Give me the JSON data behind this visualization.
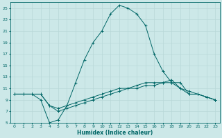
{
  "xlabel": "Humidex (Indice chaleur)",
  "bg_color": "#cce8e8",
  "grid_color": "#b8d8d8",
  "line_color": "#006666",
  "xlim": [
    -0.5,
    23.5
  ],
  "ylim": [
    5,
    26
  ],
  "xticks": [
    0,
    1,
    2,
    3,
    4,
    5,
    6,
    7,
    8,
    9,
    10,
    11,
    12,
    13,
    14,
    15,
    16,
    17,
    18,
    19,
    20,
    21,
    22,
    23
  ],
  "yticks": [
    5,
    7,
    9,
    11,
    13,
    15,
    17,
    19,
    21,
    23,
    25
  ],
  "line1_x": [
    0,
    1,
    2,
    3,
    4,
    5,
    6,
    7,
    8,
    9,
    10,
    11,
    12,
    13,
    14,
    15,
    16,
    17,
    18,
    19,
    20,
    21,
    22,
    23
  ],
  "line1_y": [
    10,
    10,
    10,
    10,
    8,
    7,
    7.5,
    8,
    8.5,
    9,
    9.5,
    10,
    10.5,
    11,
    11,
    11.5,
    11.5,
    12,
    12,
    11,
    10.5,
    10,
    9.5,
    9
  ],
  "line2_x": [
    0,
    1,
    2,
    3,
    4,
    5,
    6,
    7,
    8,
    9,
    10,
    11,
    12,
    13,
    14,
    15,
    16,
    17,
    18,
    19,
    20,
    21,
    22,
    23
  ],
  "line2_y": [
    10,
    10,
    10,
    10,
    8,
    7.5,
    8,
    8.5,
    9,
    9.5,
    10,
    10.5,
    11,
    11,
    11.5,
    12,
    12,
    12,
    12.5,
    11,
    10,
    10,
    9.5,
    9
  ],
  "line3_x": [
    0,
    1,
    2,
    3,
    4,
    5,
    6,
    7,
    8,
    9,
    10,
    11,
    12,
    13,
    14,
    15,
    16,
    17,
    18,
    19,
    20,
    21,
    22,
    23
  ],
  "line3_y": [
    10,
    10,
    10,
    9,
    5,
    5.5,
    8,
    12,
    16,
    19,
    21,
    24,
    25.5,
    25,
    24,
    22,
    17,
    14,
    12,
    12,
    10,
    10,
    9.5,
    9
  ]
}
